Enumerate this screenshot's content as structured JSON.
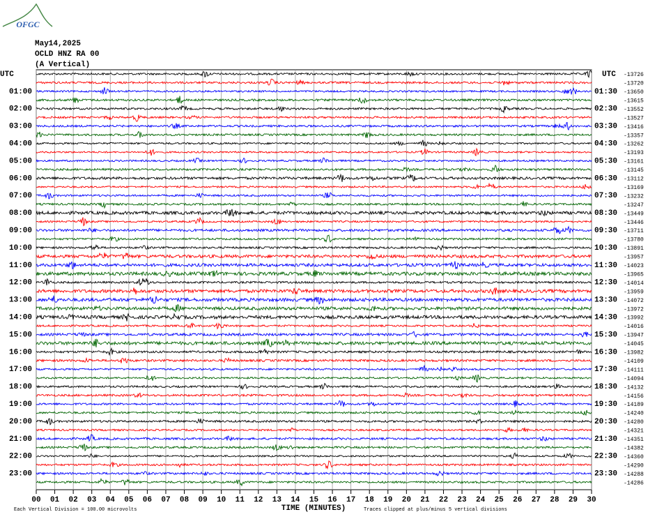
{
  "chart_data": {
    "type": "helicorder",
    "logo": "OFGC",
    "date": "May14,2025",
    "station": "OCLD HNZ RA 00",
    "component": "(A Vertical)",
    "left_header": "UTC",
    "right_header": "UTC",
    "left_labels": [
      "01:00",
      "02:00",
      "03:00",
      "04:00",
      "05:00",
      "06:00",
      "07:00",
      "08:00",
      "09:00",
      "10:00",
      "11:00",
      "12:00",
      "13:00",
      "14:00",
      "15:00",
      "16:00",
      "17:00",
      "18:00",
      "19:00",
      "20:00",
      "21:00",
      "22:00",
      "23:00"
    ],
    "right_labels": [
      "01:30",
      "02:30",
      "03:30",
      "04:30",
      "05:30",
      "06:30",
      "07:30",
      "08:30",
      "09:30",
      "10:30",
      "11:30",
      "12:30",
      "13:30",
      "14:30",
      "15:30",
      "16:30",
      "17:30",
      "18:30",
      "19:30",
      "20:30",
      "21:30",
      "22:30",
      "23:30"
    ],
    "trace_offsets": [
      -13726,
      -13720,
      -13650,
      -13615,
      -13552,
      -13527,
      -13416,
      -13357,
      -13262,
      -13193,
      -13161,
      -13145,
      -13112,
      -13169,
      -13232,
      -13247,
      -13449,
      -13446,
      -13711,
      -13780,
      -13891,
      -13957,
      -14023,
      -13965,
      -14014,
      -13959,
      -14072,
      -13972,
      -13992,
      -14016,
      -13947,
      -14045,
      -13982,
      -14109,
      -14111,
      -14094,
      -14132,
      -14156,
      -14189,
      -14240,
      -14280,
      -14321,
      -14351,
      -14382,
      -14360,
      -14290,
      -14288,
      -14286
    ],
    "trace_colors": [
      "#000000",
      "#ff0000",
      "#0000ff",
      "#006400"
    ],
    "xlabel": "TIME (MINUTES)",
    "xlim": [
      0,
      30
    ],
    "xticks": [
      {
        "value": 0,
        "label": "00"
      },
      {
        "value": 1,
        "label": "01"
      },
      {
        "value": 2,
        "label": "02"
      },
      {
        "value": 3,
        "label": "03"
      },
      {
        "value": 4,
        "label": "04"
      },
      {
        "value": 5,
        "label": "05"
      },
      {
        "value": 6,
        "label": "06"
      },
      {
        "value": 7,
        "label": "07"
      },
      {
        "value": 8,
        "label": "08"
      },
      {
        "value": 9,
        "label": "09"
      },
      10,
      11,
      12,
      13,
      14,
      15,
      16,
      17,
      18,
      19,
      20,
      21,
      22,
      23,
      24,
      25,
      26,
      27,
      28,
      29,
      30
    ],
    "grid": true,
    "scale_note": "Each Vertical Division =  100.00 microvolts",
    "clip_note": "Traces clipped at plus/minus 5 vertical divisions"
  }
}
